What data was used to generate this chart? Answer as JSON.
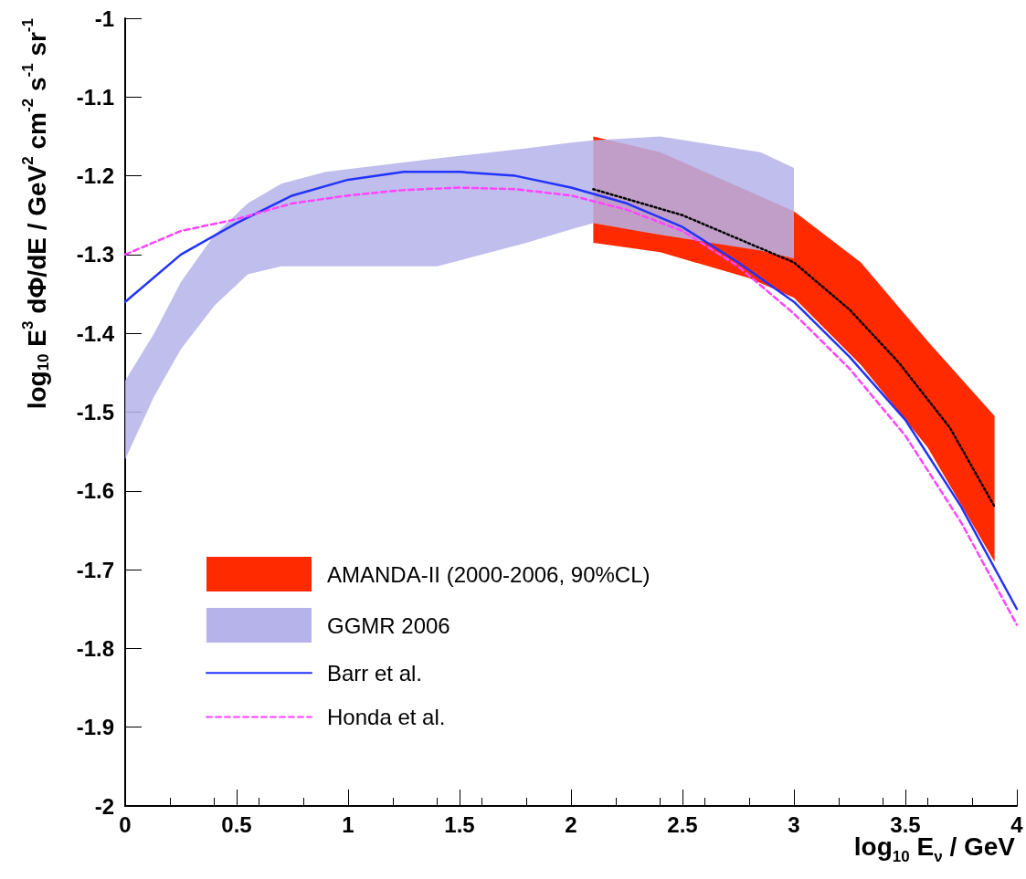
{
  "chart_data": {
    "type": "line",
    "xlabel": "log$_{10}$ E$_{ν}$ / GeV",
    "ylabel": "log$_{10}$ E$^{3}$ dΦ/dE / GeV$^{2}$ cm$^{-2}$ s$^{-1}$ sr$^{-1}$",
    "xlim": [
      0,
      4
    ],
    "xticks": [
      0,
      0.5,
      1,
      1.5,
      2,
      2.5,
      3,
      3.5,
      4
    ],
    "ylim": [
      -2,
      -1
    ],
    "yticks": [
      -2,
      -1.9,
      -1.8,
      -1.7,
      -1.6,
      -1.5,
      -1.4,
      -1.3,
      -1.2,
      -1.1,
      -1
    ],
    "grid": false,
    "legend": "bottom left",
    "marker": "none",
    "series": [
      {
        "name": "AMANDA-II (2000-2006, 90%CL)",
        "type": "area",
        "color": "#ff2a00",
        "x": [
          2.1,
          2.4,
          2.8,
          3.0,
          3.3,
          3.6,
          3.9
        ],
        "values": [
          null,
          null,
          null,
          null,
          null,
          null,
          null
        ],
        "lower": [
          -1.285,
          -1.297,
          -1.33,
          -1.355,
          -1.44,
          -1.545,
          -1.69
        ],
        "upper": [
          -1.15,
          -1.17,
          -1.22,
          -1.245,
          -1.31,
          -1.41,
          -1.505
        ]
      },
      {
        "name": "GGMR 2006",
        "type": "area",
        "color": "#b5b3ea",
        "x": [
          0,
          0.13,
          0.25,
          0.4,
          0.55,
          0.7,
          0.9,
          1.4,
          1.8,
          2.0,
          2.1,
          2.4,
          2.85,
          3.0
        ],
        "values": [
          null,
          null,
          null,
          null,
          null,
          null,
          null,
          null,
          null,
          null,
          null,
          null,
          null,
          null
        ],
        "lower": [
          -1.56,
          -1.48,
          -1.42,
          -1.365,
          -1.325,
          -1.315,
          -1.315,
          -1.315,
          -1.285,
          -1.268,
          -1.26,
          -1.275,
          -1.295,
          -1.305
        ],
        "upper": [
          -1.46,
          -1.4,
          -1.335,
          -1.275,
          -1.235,
          -1.21,
          -1.195,
          -1.178,
          -1.165,
          -1.158,
          -1.155,
          -1.15,
          -1.17,
          -1.19
        ]
      },
      {
        "color": "#000000",
        "line_style": "dotted",
        "x": [
          2.1,
          2.5,
          3.0,
          3.25,
          3.47,
          3.7,
          3.9
        ],
        "values": [
          -1.217,
          -1.25,
          -1.31,
          -1.37,
          -1.437,
          -1.52,
          -1.62
        ]
      },
      {
        "name": "Barr et al.",
        "color": "#2233ff",
        "line_style": "solid",
        "x": [
          0,
          0.25,
          0.5,
          0.75,
          1,
          1.25,
          1.5,
          1.75,
          2,
          2.25,
          2.5,
          2.75,
          3,
          3.25,
          3.5,
          3.75,
          4
        ],
        "values": [
          -1.36,
          -1.3,
          -1.26,
          -1.225,
          -1.205,
          -1.195,
          -1.195,
          -1.2,
          -1.215,
          -1.235,
          -1.265,
          -1.31,
          -1.36,
          -1.43,
          -1.51,
          -1.62,
          -1.75
        ]
      },
      {
        "name": "Honda et al.",
        "color": "#ff44ff",
        "line_style": "dashed",
        "x": [
          0,
          0.25,
          0.5,
          0.75,
          1,
          1.25,
          1.5,
          1.75,
          2,
          2.25,
          2.5,
          2.75,
          3,
          3.25,
          3.5,
          3.75,
          4
        ],
        "values": [
          -1.3,
          -1.27,
          -1.255,
          -1.235,
          -1.225,
          -1.218,
          -1.215,
          -1.217,
          -1.225,
          -1.243,
          -1.27,
          -1.315,
          -1.375,
          -1.445,
          -1.53,
          -1.64,
          -1.77
        ]
      }
    ]
  }
}
